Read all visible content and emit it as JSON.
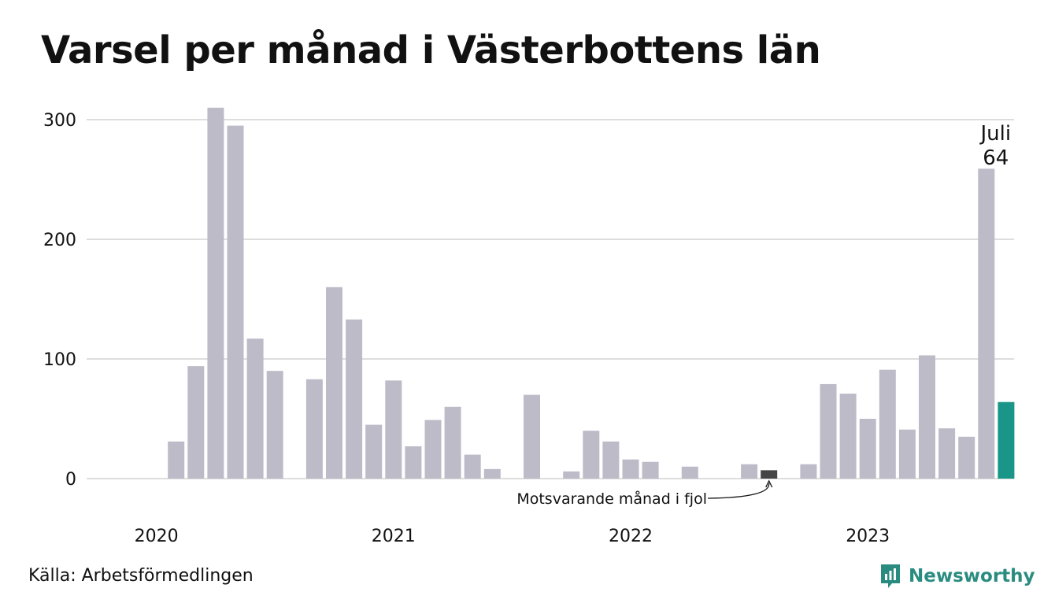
{
  "title": "Varsel per månad i Västerbottens län",
  "source": "Källa: Arbetsförmedlingen",
  "brand": {
    "name": "Newsworthy",
    "color": "#2a8c80"
  },
  "colors": {
    "bar": "#bdbbc8",
    "comparison": "#454545",
    "highlight": "#1a9688",
    "grid": "#dddddd"
  },
  "chart_data": {
    "type": "bar",
    "ylim": [
      0,
      320
    ],
    "yticks": [
      0,
      100,
      200,
      300
    ],
    "grid": true,
    "x_labels": [
      {
        "label": "2020",
        "index": 1
      },
      {
        "label": "2021",
        "index": 13
      },
      {
        "label": "2022",
        "index": 25
      },
      {
        "label": "2023",
        "index": 37
      }
    ],
    "values": [
      0,
      0,
      31,
      94,
      310,
      295,
      117,
      90,
      0,
      83,
      160,
      133,
      45,
      82,
      27,
      49,
      60,
      20,
      8,
      0,
      70,
      0,
      6,
      40,
      31,
      16,
      14,
      0,
      10,
      0,
      0,
      12,
      7,
      0,
      12,
      79,
      71,
      50,
      91,
      41,
      103,
      42,
      35,
      259,
      64
    ],
    "comparison_index": 32,
    "highlight_index": 44,
    "annotations": {
      "highlight_month": "Juli",
      "highlight_value": "64",
      "comparison_label": "Motsvarande månad i fjol"
    }
  }
}
